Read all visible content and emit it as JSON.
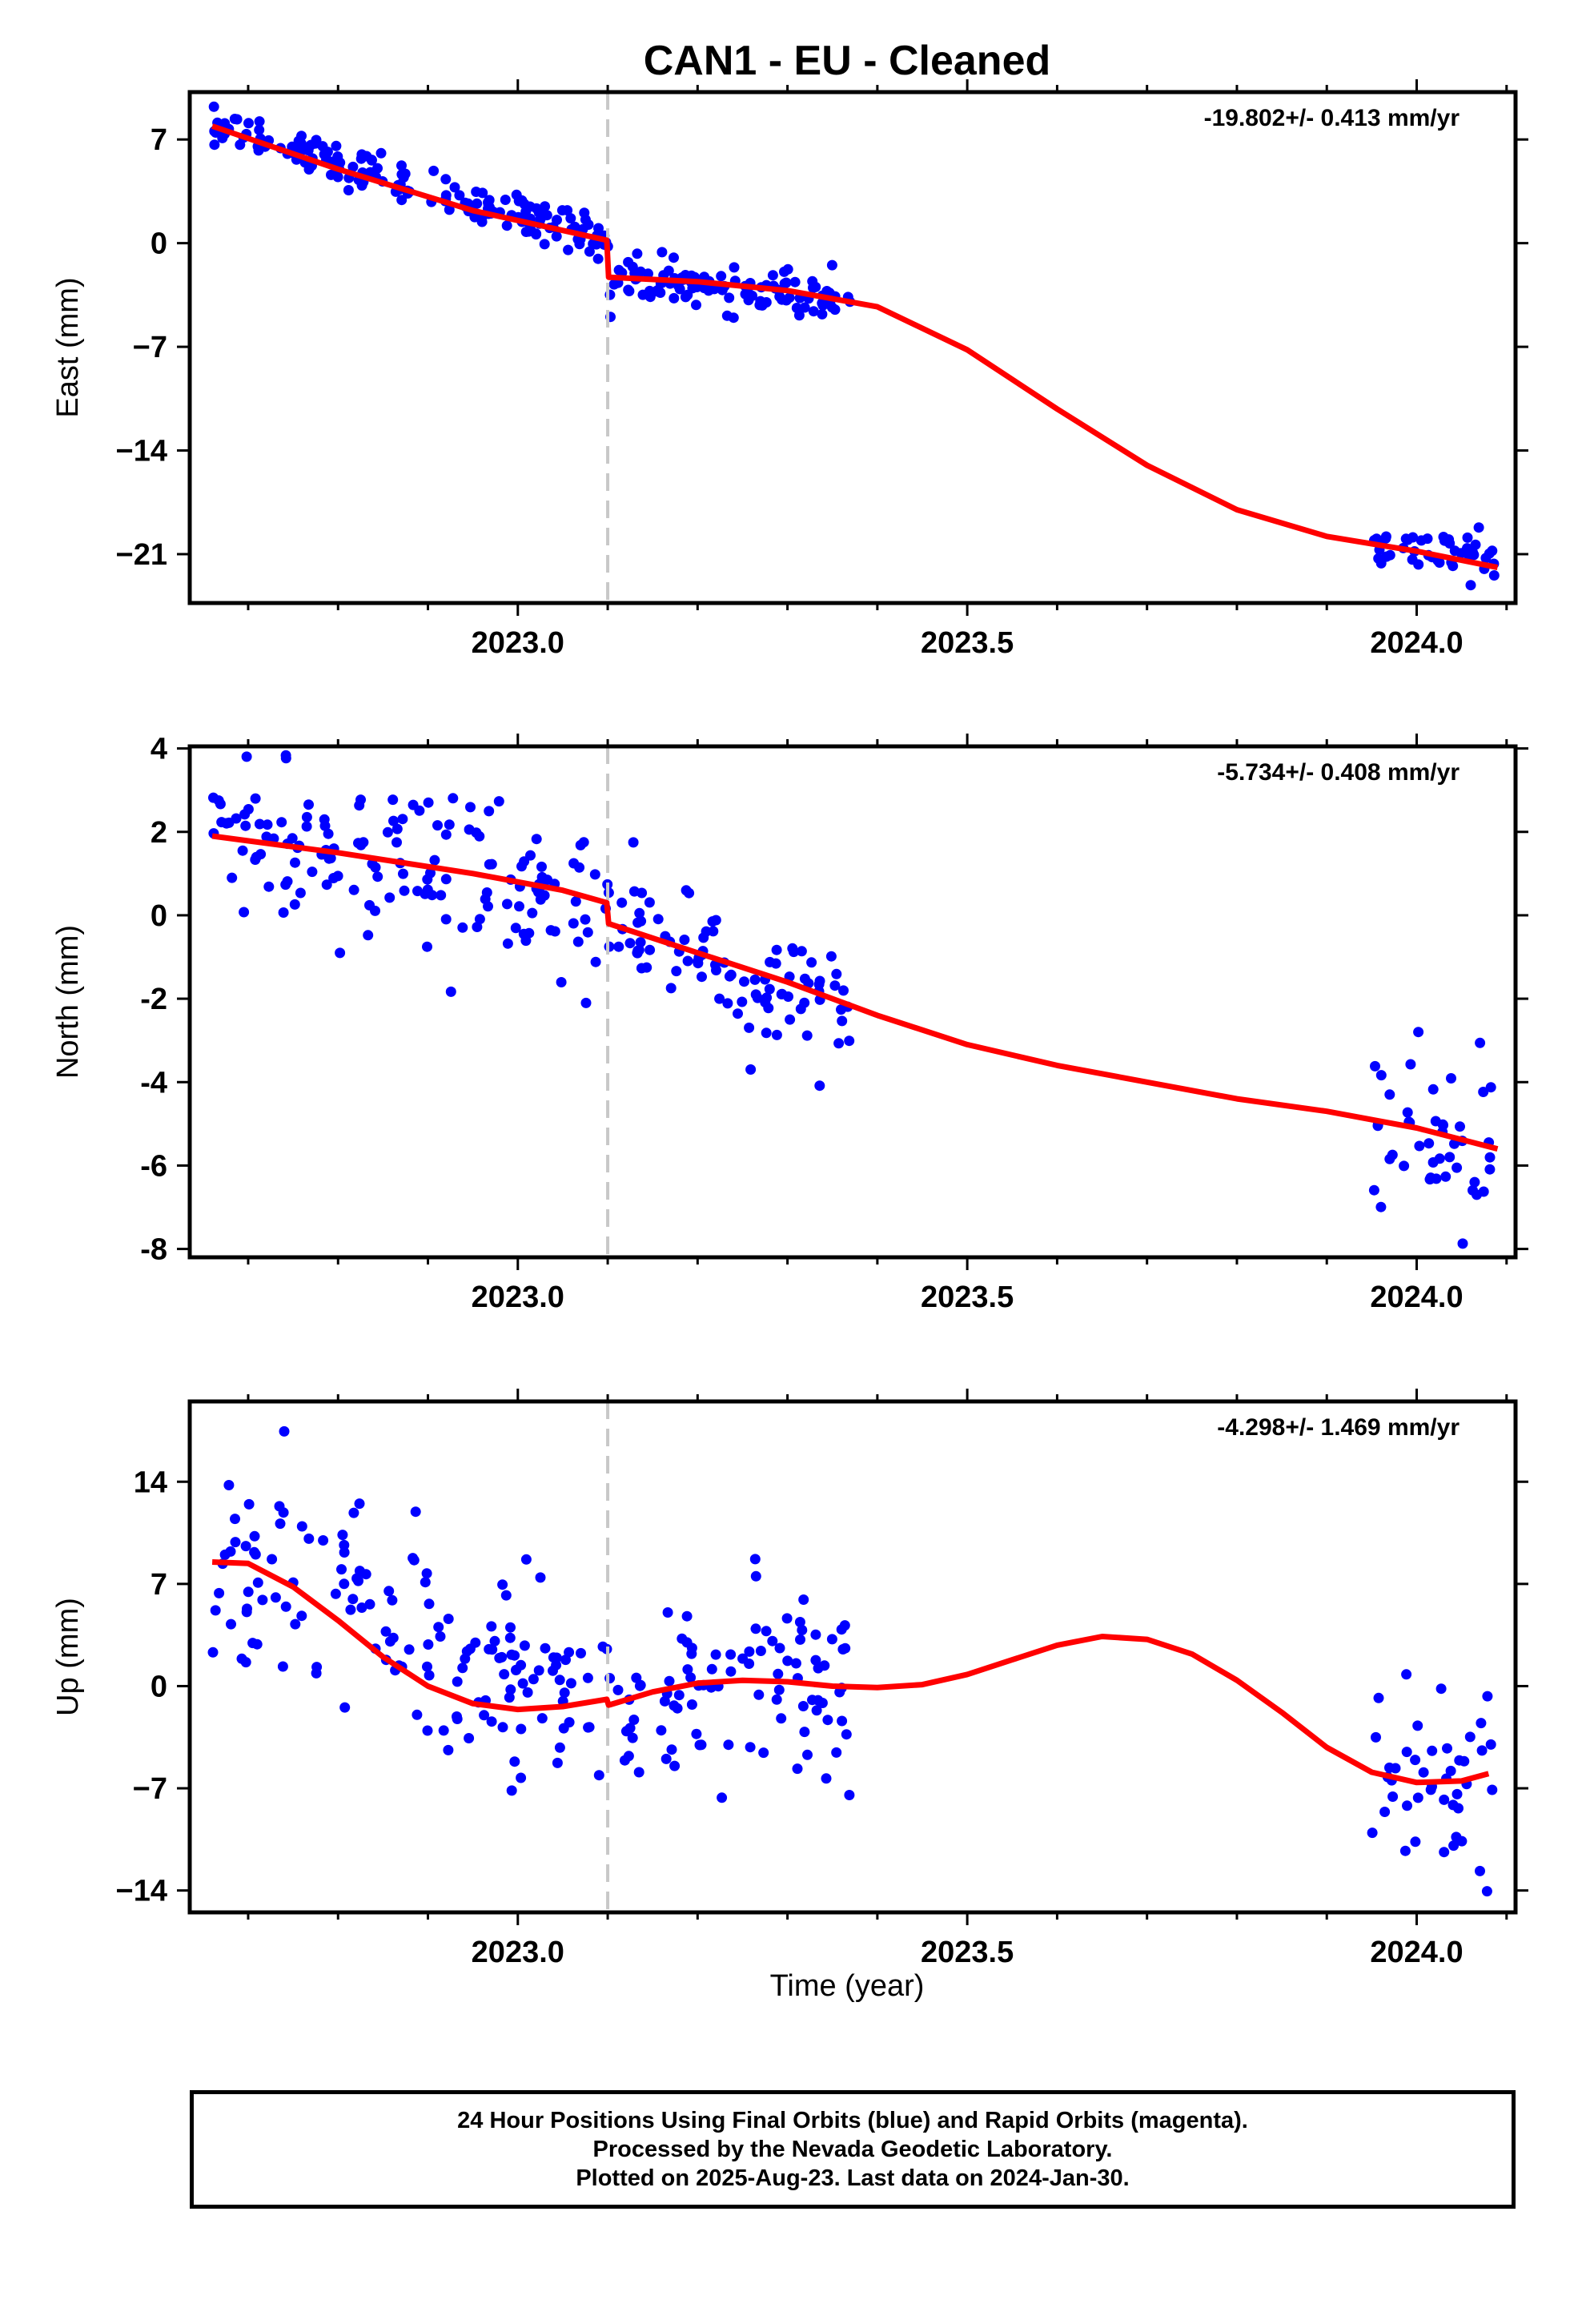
{
  "figure": {
    "title": "CAN1  - EU - Cleaned",
    "xlabel": "Time (year)",
    "footer": [
      "24 Hour Positions Using Final Orbits (blue) and Rapid Orbits (magenta).",
      "Processed by the Nevada Geodetic Laboratory.",
      "Plotted on 2025-Aug-23. Last data on 2024-Jan-30."
    ],
    "colors": {
      "data": "#0000ff",
      "fit": "#ff0000",
      "event_line": "#c8c8c8",
      "axes": "#000000"
    }
  },
  "chart_data": [
    {
      "type": "scatter",
      "component": "East",
      "ylabel": "East (mm)",
      "rate_text": "-19.802+/- 0.413 mm/yr",
      "xlim": [
        2022.635,
        2024.11
      ],
      "ylim": [
        -24.3,
        10.2
      ],
      "xticks": [
        2023.0,
        2023.5,
        2024.0
      ],
      "xtick_labels": [
        "2023.0",
        "2023.5",
        "2024.0"
      ],
      "yticks": [
        7,
        0,
        -7,
        -14,
        -21
      ],
      "ytick_labels": [
        "7",
        "0",
        "−7",
        "−14",
        "−21"
      ],
      "event_x": 2023.1,
      "segments": [
        {
          "x0": 2022.66,
          "x1": 2023.1,
          "y0": 7.8,
          "y1": 0.3,
          "jump": 0,
          "scatter": 0.8,
          "n": 170
        },
        {
          "x0": 2023.1,
          "x1": 2023.37,
          "y0": -2.3,
          "y1": -3.8,
          "jump": 0,
          "scatter": 0.9,
          "n": 110
        },
        {
          "x0": 2023.95,
          "x1": 2024.09,
          "y0": -20.3,
          "y1": -21.5,
          "jump": 0,
          "scatter": 0.9,
          "n": 45
        }
      ],
      "fit": [
        [
          2022.66,
          7.9
        ],
        [
          2022.8,
          5.0
        ],
        [
          2022.95,
          2.2
        ],
        [
          2023.099,
          0.2
        ],
        [
          2023.101,
          -2.3
        ],
        [
          2023.2,
          -2.6
        ],
        [
          2023.3,
          -3.2
        ],
        [
          2023.4,
          -4.3
        ],
        [
          2023.5,
          -7.2
        ],
        [
          2023.6,
          -11.2
        ],
        [
          2023.7,
          -15.0
        ],
        [
          2023.8,
          -18.0
        ],
        [
          2023.9,
          -19.8
        ],
        [
          2024.0,
          -20.8
        ],
        [
          2024.09,
          -21.9
        ]
      ]
    },
    {
      "type": "scatter",
      "component": "North",
      "ylabel": "North (mm)",
      "rate_text": "-5.734+/- 0.408 mm/yr",
      "xlim": [
        2022.635,
        2024.11
      ],
      "ylim": [
        -8.2,
        4.05
      ],
      "xticks": [
        2023.0,
        2023.5,
        2024.0
      ],
      "xtick_labels": [
        "2023.0",
        "2023.5",
        "2024.0"
      ],
      "yticks": [
        4,
        2,
        0,
        -2,
        -4,
        -6,
        -8
      ],
      "ytick_labels": [
        "4",
        "2",
        "0",
        "-2",
        "-4",
        "-6",
        "-8"
      ],
      "event_x": 2023.1,
      "segments": [
        {
          "x0": 2022.66,
          "x1": 2023.1,
          "y0": 1.9,
          "y1": 0.2,
          "jump": 0,
          "scatter": 1.1,
          "n": 150
        },
        {
          "x0": 2023.1,
          "x1": 2023.37,
          "y0": -0.4,
          "y1": -2.3,
          "jump": 0,
          "scatter": 0.9,
          "n": 95
        },
        {
          "x0": 2023.95,
          "x1": 2024.09,
          "y0": -5.0,
          "y1": -5.6,
          "jump": 0,
          "scatter": 1.2,
          "n": 45
        }
      ],
      "fit": [
        [
          2022.66,
          1.9
        ],
        [
          2022.8,
          1.5
        ],
        [
          2022.95,
          1.0
        ],
        [
          2023.05,
          0.6
        ],
        [
          2023.099,
          0.3
        ],
        [
          2023.101,
          -0.2
        ],
        [
          2023.2,
          -0.9
        ],
        [
          2023.3,
          -1.6
        ],
        [
          2023.4,
          -2.4
        ],
        [
          2023.5,
          -3.1
        ],
        [
          2023.6,
          -3.6
        ],
        [
          2023.7,
          -4.0
        ],
        [
          2023.8,
          -4.4
        ],
        [
          2023.9,
          -4.7
        ],
        [
          2024.0,
          -5.1
        ],
        [
          2024.09,
          -5.6
        ]
      ]
    },
    {
      "type": "scatter",
      "component": "Up",
      "ylabel": "Up (mm)",
      "rate_text": "-4.298+/- 1.469 mm/yr",
      "xlim": [
        2022.635,
        2024.11
      ],
      "ylim": [
        -15.5,
        19.5
      ],
      "xticks": [
        2023.0,
        2023.5,
        2024.0
      ],
      "xtick_labels": [
        "2023.0",
        "2023.5",
        "2024.0"
      ],
      "yticks": [
        14,
        7,
        0,
        -7,
        -14
      ],
      "ytick_labels": [
        "14",
        "7",
        "0",
        "−7",
        "−14"
      ],
      "event_x": 2023.1,
      "segments": [
        {
          "x0": 2022.66,
          "x1": 2023.1,
          "y0": 8.5,
          "y1": -1.3,
          "jump": 0,
          "scatter": 4.0,
          "n": 150
        },
        {
          "x0": 2023.1,
          "x1": 2023.37,
          "y0": -1.0,
          "y1": 0.0,
          "jump": 0,
          "scatter": 4.2,
          "n": 95
        },
        {
          "x0": 2023.95,
          "x1": 2024.09,
          "y0": -6.5,
          "y1": -6.0,
          "jump": 0,
          "scatter": 4.5,
          "n": 45
        }
      ],
      "fit": [
        [
          2022.66,
          8.5
        ],
        [
          2022.7,
          8.4
        ],
        [
          2022.75,
          6.8
        ],
        [
          2022.8,
          4.5
        ],
        [
          2022.85,
          2.0
        ],
        [
          2022.9,
          0.0
        ],
        [
          2022.95,
          -1.2
        ],
        [
          2023.0,
          -1.6
        ],
        [
          2023.05,
          -1.4
        ],
        [
          2023.099,
          -0.9
        ],
        [
          2023.101,
          -1.3
        ],
        [
          2023.15,
          -0.4
        ],
        [
          2023.2,
          0.2
        ],
        [
          2023.25,
          0.4
        ],
        [
          2023.3,
          0.3
        ],
        [
          2023.35,
          0.0
        ],
        [
          2023.4,
          -0.1
        ],
        [
          2023.45,
          0.1
        ],
        [
          2023.5,
          0.8
        ],
        [
          2023.55,
          1.8
        ],
        [
          2023.6,
          2.8
        ],
        [
          2023.65,
          3.4
        ],
        [
          2023.7,
          3.2
        ],
        [
          2023.75,
          2.2
        ],
        [
          2023.8,
          0.4
        ],
        [
          2023.85,
          -1.8
        ],
        [
          2023.9,
          -4.2
        ],
        [
          2023.95,
          -5.9
        ],
        [
          2024.0,
          -6.6
        ],
        [
          2024.05,
          -6.5
        ],
        [
          2024.08,
          -6.0
        ]
      ]
    }
  ]
}
